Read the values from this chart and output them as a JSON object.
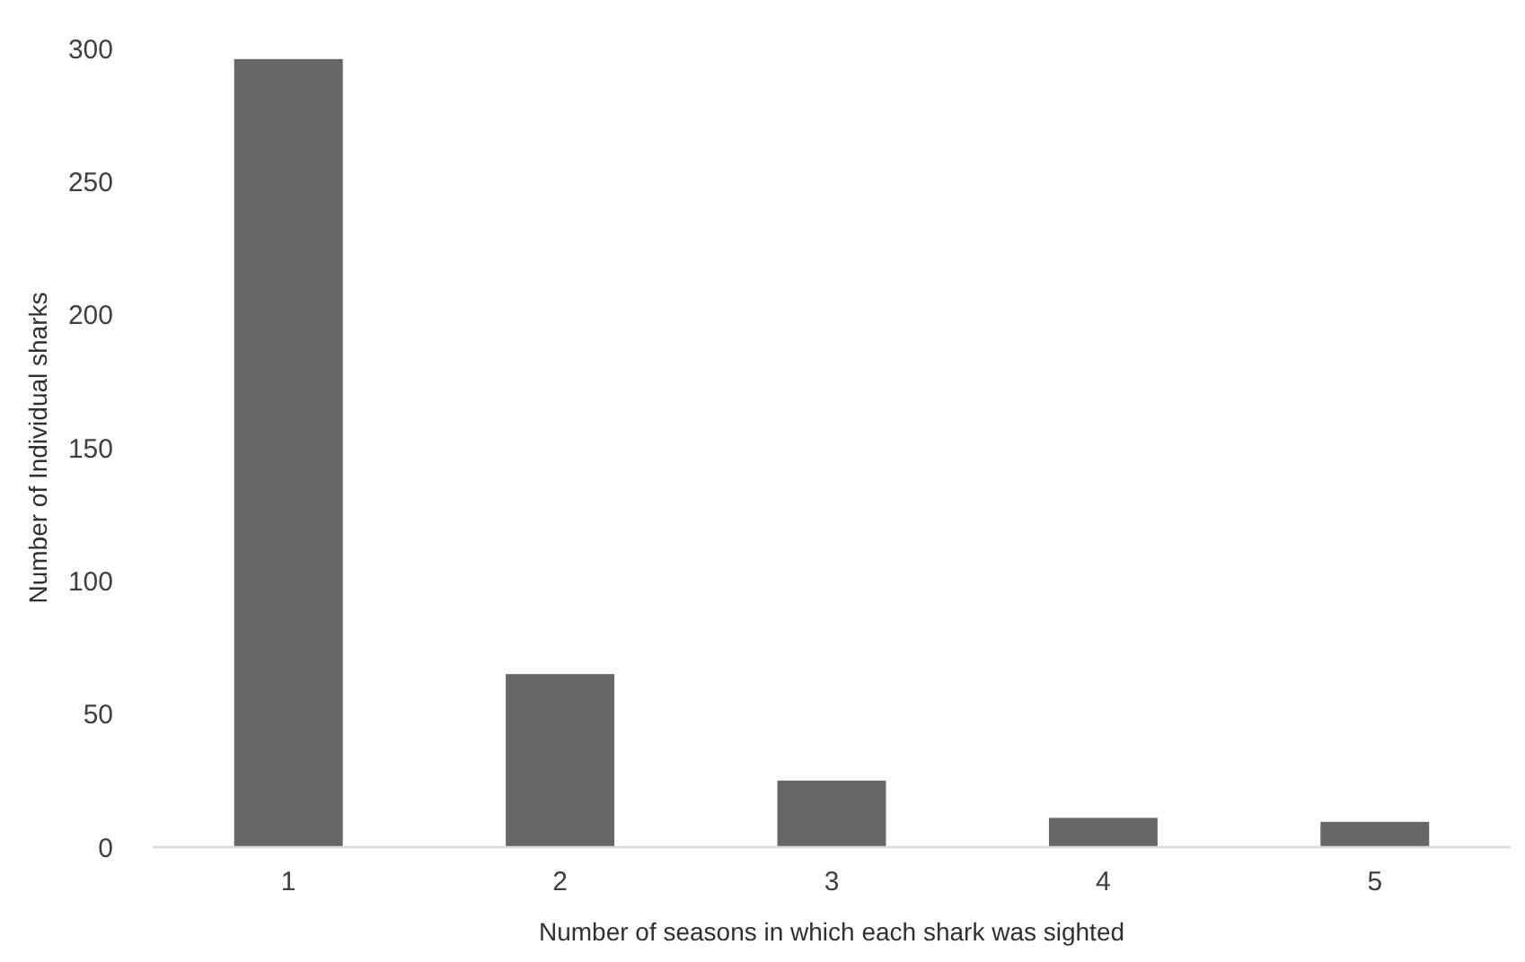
{
  "chart_data": {
    "type": "bar",
    "xlabel": "Number of seasons in which each shark was sighted",
    "ylabel": "Number of Individual sharks",
    "categories": [
      "1",
      "2",
      "3",
      "4",
      "5"
    ],
    "values": [
      296,
      65,
      25,
      11,
      9.5
    ],
    "color": "#676767",
    "ylim": [
      0,
      300
    ],
    "yticks": [
      0,
      50,
      100,
      150,
      200,
      250,
      300
    ],
    "grid": false
  }
}
